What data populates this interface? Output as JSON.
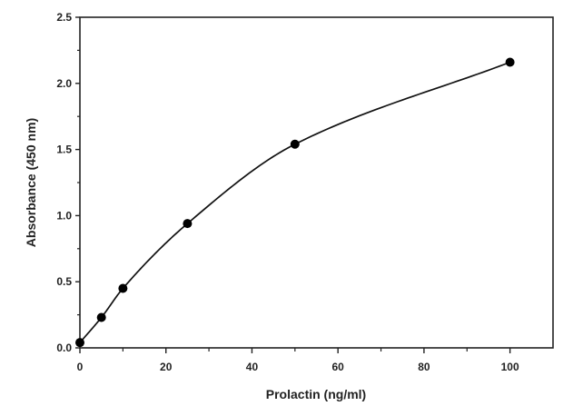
{
  "chart_data": {
    "type": "scatter",
    "title": "",
    "xlabel": "Prolactin (ng/ml)",
    "ylabel": "Absorbance (450 nm)",
    "xlim": [
      0,
      110
    ],
    "ylim": [
      0,
      2.5
    ],
    "x_ticks": [
      0,
      20,
      40,
      60,
      80,
      100
    ],
    "x_tick_labels": [
      "0",
      "20",
      "40",
      "60",
      "80",
      "100"
    ],
    "y_ticks": [
      0,
      0.5,
      1.0,
      1.5,
      2.0,
      2.5
    ],
    "y_tick_labels": [
      "0.0",
      "0.5",
      "1.0",
      "1.5",
      "2.0",
      "2.5"
    ],
    "grid": false,
    "series": [
      {
        "x": [
          0,
          5,
          10,
          25,
          50,
          100
        ],
        "y": [
          0.04,
          0.23,
          0.45,
          0.94,
          1.54,
          2.16
        ],
        "marker": "circle",
        "fit_curve": true,
        "color": "#000000"
      }
    ]
  }
}
